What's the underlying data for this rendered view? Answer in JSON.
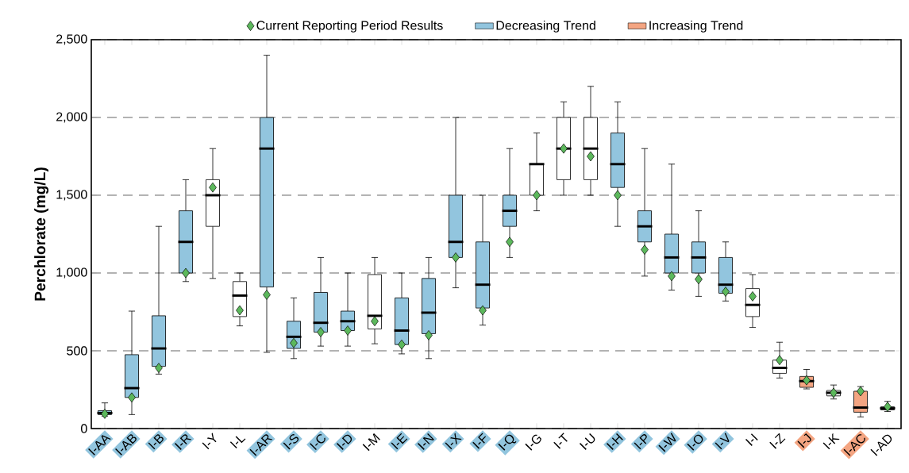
{
  "chart_data": {
    "type": "box",
    "ylabel": "Perchlorate (mg/L)",
    "categories": [
      "I-AA",
      "I-AB",
      "I-B",
      "I-R",
      "I-Y",
      "I-L",
      "I-AR",
      "I-S",
      "I-C",
      "I-D",
      "I-M",
      "I-E",
      "I-N",
      "I-X",
      "I-F",
      "I-Q",
      "I-G",
      "I-T",
      "I-U",
      "I-H",
      "I-P",
      "I-W",
      "I-O",
      "I-V",
      "I-I",
      "I-Z",
      "I-J",
      "I-K",
      "I-AC",
      "I-AD"
    ],
    "ylim": [
      0,
      2500
    ],
    "yticks": [
      0,
      500,
      {
        "value": 1000,
        "label": "1,000"
      },
      {
        "value": 1500,
        "label": "1,500"
      },
      {
        "value": 2000,
        "label": "2,000"
      },
      {
        "value": 2500,
        "label": "2,500"
      }
    ],
    "grid": "y",
    "legend": "top",
    "series": [
      {
        "name": "Current Reporting Period Results",
        "type": "scatter",
        "marker": "diamond",
        "color": "#5cb85c",
        "values": [
          95,
          200,
          390,
          1000,
          1550,
          760,
          860,
          550,
          620,
          630,
          690,
          540,
          600,
          1100,
          760,
          1200,
          1500,
          1800,
          1750,
          1500,
          1150,
          980,
          960,
          880,
          850,
          440,
          310,
          230,
          240,
          140
        ]
      },
      {
        "name": "Decreasing Trend",
        "color": "#92c5de",
        "boxes": [
          {
            "low": 80,
            "q1": 90,
            "median": 100,
            "q3": 115,
            "high": 165
          },
          {
            "low": 90,
            "q1": 200,
            "median": 260,
            "q3": 475,
            "high": 755
          },
          {
            "low": 350,
            "q1": 400,
            "median": 515,
            "q3": 725,
            "high": 1300
          },
          {
            "low": 945,
            "q1": 1000,
            "median": 1200,
            "q3": 1400,
            "high": 1600
          },
          null,
          null,
          {
            "low": 490,
            "q1": 910,
            "median": 1800,
            "q3": 2000,
            "high": 2400
          },
          {
            "low": 450,
            "q1": 515,
            "median": 590,
            "q3": 690,
            "high": 840
          },
          {
            "low": 530,
            "q1": 620,
            "median": 680,
            "q3": 875,
            "high": 1100
          },
          {
            "low": 530,
            "q1": 630,
            "median": 690,
            "q3": 755,
            "high": 1000
          },
          null,
          {
            "low": 480,
            "q1": 540,
            "median": 630,
            "q3": 840,
            "high": 1000
          },
          {
            "low": 450,
            "q1": 610,
            "median": 745,
            "q3": 965,
            "high": 1100
          },
          {
            "low": 905,
            "q1": 1100,
            "median": 1200,
            "q3": 1500,
            "high": 2000
          },
          {
            "low": 665,
            "q1": 775,
            "median": 925,
            "q3": 1200,
            "high": 1500
          },
          {
            "low": 1100,
            "q1": 1300,
            "median": 1400,
            "q3": 1500,
            "high": 1800
          },
          null,
          null,
          null,
          {
            "low": 1300,
            "q1": 1550,
            "median": 1700,
            "q3": 1900,
            "high": 2100
          },
          {
            "low": 980,
            "q1": 1200,
            "median": 1300,
            "q3": 1400,
            "high": 1800
          },
          {
            "low": 890,
            "q1": 1000,
            "median": 1100,
            "q3": 1250,
            "high": 1700
          },
          {
            "low": 850,
            "q1": 1000,
            "median": 1100,
            "q3": 1200,
            "high": 1400
          },
          {
            "low": 820,
            "q1": 870,
            "median": 925,
            "q3": 1100,
            "high": 1200
          },
          null,
          null,
          null,
          null,
          null,
          null
        ]
      },
      {
        "name": "Increasing Trend",
        "color": "#f4a582",
        "boxes": [
          null,
          null,
          null,
          null,
          null,
          null,
          null,
          null,
          null,
          null,
          null,
          null,
          null,
          null,
          null,
          null,
          null,
          null,
          null,
          null,
          null,
          null,
          null,
          null,
          null,
          null,
          {
            "low": 255,
            "q1": 265,
            "median": 305,
            "q3": 335,
            "high": 380
          },
          null,
          {
            "low": 75,
            "q1": 105,
            "median": 135,
            "q3": 240,
            "high": 270
          },
          null
        ]
      },
      {
        "color": "#ffffff",
        "boxes": [
          null,
          null,
          null,
          null,
          {
            "low": 965,
            "q1": 1300,
            "median": 1500,
            "q3": 1600,
            "high": 1800
          },
          {
            "low": 660,
            "q1": 720,
            "median": 855,
            "q3": 945,
            "high": 1000
          },
          null,
          null,
          null,
          null,
          {
            "low": 545,
            "q1": 640,
            "median": 725,
            "q3": 990,
            "high": 1100
          },
          null,
          null,
          null,
          null,
          null,
          {
            "low": 1400,
            "q1": 1500,
            "median": 1700,
            "q3": 1700,
            "high": 1900
          },
          {
            "low": 1500,
            "q1": 1600,
            "median": 1800,
            "q3": 2000,
            "high": 2100
          },
          {
            "low": 1500,
            "q1": 1600,
            "median": 1800,
            "q3": 2000,
            "high": 2200
          },
          null,
          null,
          null,
          null,
          null,
          {
            "low": 650,
            "q1": 720,
            "median": 795,
            "q3": 900,
            "high": 990
          },
          {
            "low": 325,
            "q1": 355,
            "median": 390,
            "q3": 440,
            "high": 555
          },
          null,
          {
            "low": 190,
            "q1": 210,
            "median": 230,
            "q3": 245,
            "high": 280
          },
          null,
          {
            "low": 110,
            "q1": 120,
            "median": 130,
            "q3": 140,
            "high": 175
          }
        ]
      }
    ]
  }
}
